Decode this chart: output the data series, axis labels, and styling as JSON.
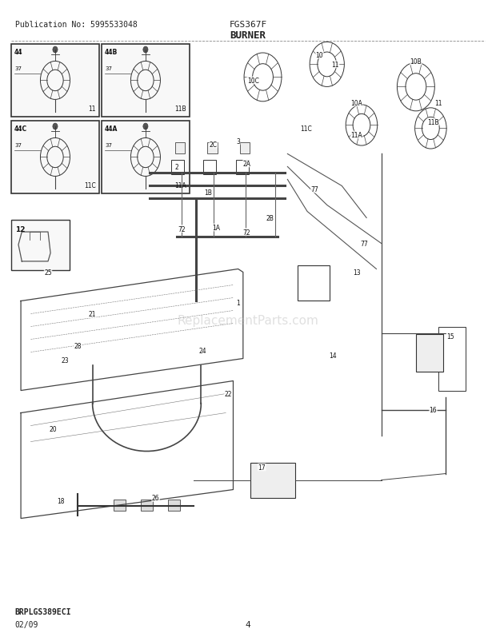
{
  "title": "BURNER",
  "model": "FGS367F",
  "publication": "Publication No: 5995533048",
  "date": "02/09",
  "page": "4",
  "diagram_code": "BRPLGS389ECI",
  "bg_color": "#ffffff",
  "line_color": "#333333",
  "text_color": "#222222",
  "figsize": [
    6.2,
    8.03
  ],
  "dpi": 100
}
